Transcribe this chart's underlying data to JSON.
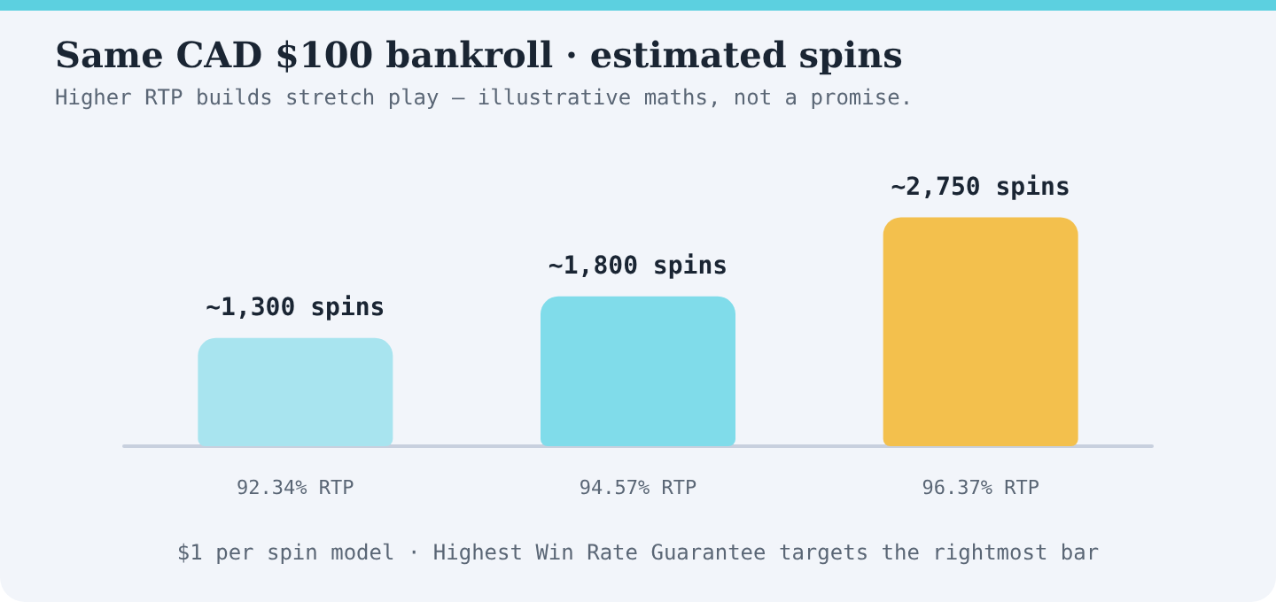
{
  "chart_data": {
    "type": "bar",
    "title": "Same CAD $100 bankroll · estimated spins",
    "subtitle": "Higher RTP builds stretch play — illustrative maths, not a promise.",
    "categories": [
      "92.34% RTP",
      "94.57% RTP",
      "96.37% RTP"
    ],
    "values": [
      1300,
      1800,
      2750
    ],
    "colors": [
      "#a8e4ef",
      "#80dcea",
      "#f3c04d"
    ],
    "value_labels": [
      "~1,300 spins",
      "~1,800 spins",
      "~2,750 spins"
    ],
    "annotations": [
      "$1 per spin model · Highest Win Rate Guarantee targets the rightmost bar"
    ]
  }
}
